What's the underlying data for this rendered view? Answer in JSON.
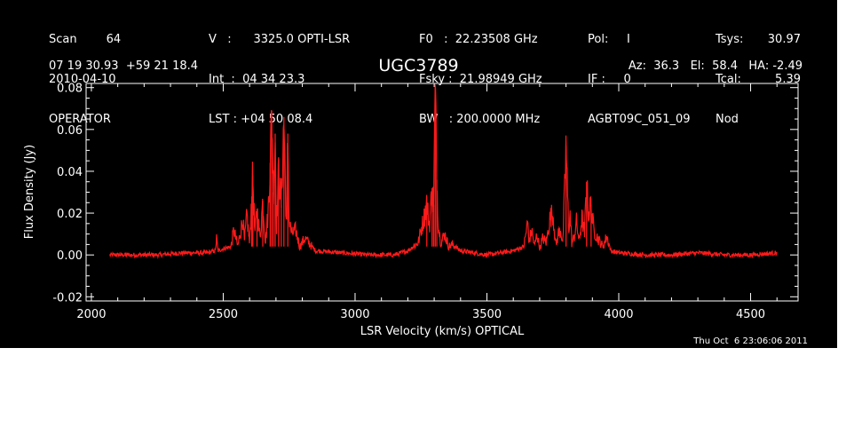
{
  "header": {
    "col1": [
      "Scan        64",
      "2010-04-10",
      "OPERATOR"
    ],
    "col2": [
      "V   :      3325.0 OPTI-LSR",
      "Int  :  04 34 23.3",
      "LST : +04 50 08.4"
    ],
    "col3": [
      "F0   :  22.23508 GHz",
      "Fsky :  21.98949 GHz",
      "BW   : 200.0000 MHz"
    ],
    "col4": [
      "Pol:     I",
      "IF :     0",
      "AGBT09C_051_09"
    ],
    "col5a": [
      "Tsys:",
      "Tcal:",
      "Nod"
    ],
    "col5b": [
      "30.97",
      "5.39",
      ""
    ],
    "coords": "07 19 30.93  +59 21 18.4",
    "object": "UGC3789",
    "azel": "Az:  36.3   El:  58.4   HA: -2.49"
  },
  "timestamp": "Thu Oct  6 23:06:06 2011",
  "colors": {
    "background": "#000000",
    "axes": "#ffffff",
    "spectrum": "#ff1a1a"
  },
  "chart_data": {
    "type": "line",
    "title": "UGC3789",
    "xlabel": "LSR Velocity (km/s) OPTICAL",
    "ylabel": "Flux Density (Jy)",
    "xlim": [
      1980,
      4680
    ],
    "ylim": [
      -0.022,
      0.082
    ],
    "xticks": [
      2000,
      2500,
      3000,
      3500,
      4000,
      4500
    ],
    "xtick_labels": [
      "2000",
      "2500",
      "3000",
      "3500",
      "4000",
      "4500"
    ],
    "yticks": [
      -0.02,
      0.0,
      0.02,
      0.04,
      0.06,
      0.08
    ],
    "ytick_labels": [
      "-0.02",
      "0.00",
      "0.02",
      "0.04",
      "0.06",
      "0.08"
    ],
    "grid": false,
    "series": [
      {
        "x": [
          2070,
          2150,
          2250,
          2350,
          2440,
          2470,
          2475,
          2480,
          2500,
          2530,
          2540,
          2555,
          2570,
          2575,
          2580,
          2590,
          2600,
          2608,
          2612,
          2620,
          2628,
          2640,
          2650,
          2660,
          2670,
          2678,
          2684,
          2690,
          2697,
          2702,
          2710,
          2720,
          2730,
          2740,
          2745,
          2750,
          2760,
          2775,
          2790,
          2810,
          2850,
          2950,
          3050,
          3150,
          3200,
          3240,
          3250,
          3262,
          3272,
          3282,
          3292,
          3298,
          3304,
          3310,
          3316,
          3325,
          3340,
          3355,
          3370,
          3400,
          3500,
          3600,
          3640,
          3655,
          3660,
          3670,
          3680,
          3690,
          3700,
          3712,
          3725,
          3740,
          3750,
          3762,
          3770,
          3780,
          3788,
          3800,
          3810,
          3815,
          3822,
          3830,
          3840,
          3850,
          3860,
          3870,
          3878,
          3885,
          3895,
          3905,
          3920,
          3940,
          3955,
          3970,
          4000,
          4100,
          4200,
          4300,
          4400,
          4500,
          4600
        ],
        "y": [
          0.0,
          0.0,
          0.0,
          0.001,
          0.001,
          0.002,
          0.008,
          0.002,
          0.003,
          0.004,
          0.012,
          0.004,
          0.014,
          0.018,
          0.006,
          0.019,
          0.005,
          0.028,
          0.038,
          0.01,
          0.022,
          0.008,
          0.026,
          0.006,
          0.02,
          0.044,
          0.069,
          0.03,
          0.058,
          0.014,
          0.04,
          0.024,
          0.066,
          0.01,
          0.058,
          0.016,
          0.01,
          0.012,
          0.004,
          0.008,
          0.002,
          0.001,
          0.0,
          0.0,
          0.002,
          0.006,
          0.012,
          0.018,
          0.025,
          0.014,
          0.032,
          0.024,
          0.079,
          0.036,
          0.014,
          0.006,
          0.01,
          0.004,
          0.005,
          0.002,
          0.0,
          0.002,
          0.004,
          0.016,
          0.006,
          0.012,
          0.004,
          0.01,
          0.003,
          0.008,
          0.006,
          0.018,
          0.02,
          0.004,
          0.01,
          0.012,
          0.005,
          0.052,
          0.012,
          0.02,
          0.006,
          0.008,
          0.016,
          0.006,
          0.018,
          0.01,
          0.035,
          0.02,
          0.024,
          0.012,
          0.008,
          0.004,
          0.009,
          0.002,
          0.001,
          0.0,
          0.0,
          0.001,
          0.0,
          0.0,
          0.001
        ]
      }
    ]
  }
}
